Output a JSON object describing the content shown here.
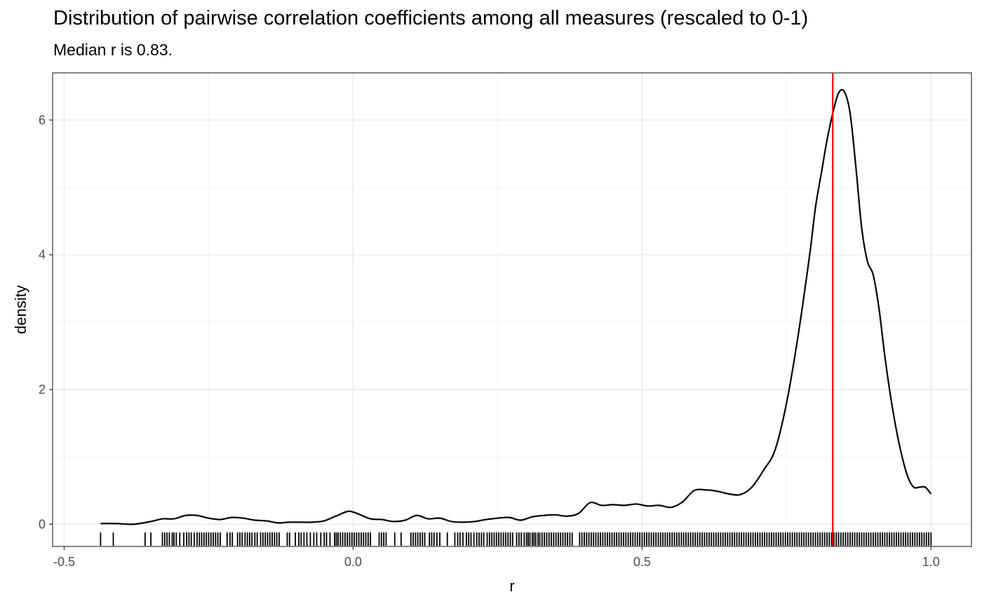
{
  "chart_data": {
    "type": "area",
    "title": "Distribution of pairwise correlation coefficients among all measures (rescaled to 0-1)",
    "subtitle": "Median r is 0.83.",
    "xlabel": "r",
    "ylabel": "density",
    "xlim": [
      -0.52,
      1.07
    ],
    "ylim": [
      -0.33,
      6.7
    ],
    "x_ticks": [
      -0.5,
      0.0,
      0.5,
      1.0
    ],
    "x_tick_labels": [
      "-0.5",
      "0.0",
      "0.5",
      "1.0"
    ],
    "y_ticks": [
      0,
      2,
      4,
      6
    ],
    "y_tick_labels": [
      "0",
      "2",
      "4",
      "6"
    ],
    "grid": true,
    "median": 0.83,
    "median_color": "#ff0000",
    "line_color": "#000000",
    "density_curve": {
      "x": [
        -0.437,
        -0.41,
        -0.38,
        -0.35,
        -0.33,
        -0.31,
        -0.29,
        -0.27,
        -0.25,
        -0.23,
        -0.21,
        -0.19,
        -0.17,
        -0.15,
        -0.13,
        -0.11,
        -0.09,
        -0.07,
        -0.05,
        -0.03,
        -0.01,
        0.0,
        0.01,
        0.03,
        0.05,
        0.07,
        0.09,
        0.11,
        0.13,
        0.15,
        0.17,
        0.19,
        0.21,
        0.23,
        0.25,
        0.27,
        0.29,
        0.31,
        0.33,
        0.35,
        0.37,
        0.39,
        0.41,
        0.43,
        0.45,
        0.47,
        0.49,
        0.51,
        0.53,
        0.55,
        0.57,
        0.59,
        0.61,
        0.63,
        0.65,
        0.67,
        0.69,
        0.71,
        0.73,
        0.75,
        0.77,
        0.79,
        0.8,
        0.81,
        0.82,
        0.83,
        0.84,
        0.85,
        0.86,
        0.87,
        0.88,
        0.89,
        0.9,
        0.91,
        0.92,
        0.93,
        0.94,
        0.95,
        0.96,
        0.97,
        0.98,
        0.99,
        1.0
      ],
      "y": [
        0.01,
        0.01,
        0.0,
        0.04,
        0.08,
        0.08,
        0.13,
        0.13,
        0.09,
        0.07,
        0.1,
        0.09,
        0.06,
        0.05,
        0.02,
        0.03,
        0.03,
        0.03,
        0.05,
        0.12,
        0.19,
        0.18,
        0.15,
        0.08,
        0.07,
        0.04,
        0.06,
        0.13,
        0.08,
        0.09,
        0.04,
        0.03,
        0.04,
        0.07,
        0.09,
        0.1,
        0.06,
        0.11,
        0.13,
        0.14,
        0.12,
        0.16,
        0.32,
        0.28,
        0.29,
        0.28,
        0.3,
        0.27,
        0.28,
        0.25,
        0.33,
        0.5,
        0.51,
        0.49,
        0.45,
        0.44,
        0.55,
        0.8,
        1.1,
        1.8,
        2.8,
        4.0,
        4.7,
        5.2,
        5.7,
        6.1,
        6.4,
        6.42,
        6.1,
        5.3,
        4.4,
        3.9,
        3.7,
        3.2,
        2.5,
        1.9,
        1.4,
        1.0,
        0.7,
        0.55,
        0.55,
        0.55,
        0.45
      ]
    },
    "rug": [
      -0.437,
      -0.415,
      -0.36,
      -0.35,
      -0.33,
      -0.326,
      -0.322,
      -0.318,
      -0.313,
      -0.31,
      -0.306,
      -0.3,
      -0.293,
      -0.288,
      -0.284,
      -0.28,
      -0.275,
      -0.27,
      -0.266,
      -0.262,
      -0.258,
      -0.254,
      -0.25,
      -0.246,
      -0.242,
      -0.238,
      -0.234,
      -0.23,
      -0.218,
      -0.213,
      -0.209,
      -0.2,
      -0.196,
      -0.192,
      -0.187,
      -0.183,
      -0.179,
      -0.175,
      -0.17,
      -0.166,
      -0.16,
      -0.156,
      -0.152,
      -0.148,
      -0.144,
      -0.14,
      -0.136,
      -0.132,
      -0.128,
      -0.114,
      -0.11,
      -0.1,
      -0.094,
      -0.09,
      -0.085,
      -0.08,
      -0.074,
      -0.068,
      -0.063,
      -0.056,
      -0.05,
      -0.046,
      -0.04,
      -0.032,
      -0.029,
      -0.026,
      -0.022,
      -0.018,
      -0.014,
      -0.01,
      -0.006,
      -0.002,
      0.002,
      0.006,
      0.01,
      0.014,
      0.018,
      0.022,
      0.026,
      0.03,
      0.045,
      0.049,
      0.053,
      0.057,
      0.072,
      0.083,
      0.1,
      0.104,
      0.108,
      0.112,
      0.116,
      0.12,
      0.124,
      0.132,
      0.136,
      0.14,
      0.145,
      0.15,
      0.163,
      0.176,
      0.181,
      0.185,
      0.19,
      0.196,
      0.2,
      0.204,
      0.209,
      0.214,
      0.218,
      0.222,
      0.226,
      0.232,
      0.236,
      0.24,
      0.244,
      0.248,
      0.252,
      0.256,
      0.26,
      0.264,
      0.268,
      0.272,
      0.276,
      0.283,
      0.287,
      0.291,
      0.296,
      0.3,
      0.303,
      0.306,
      0.31,
      0.313,
      0.316,
      0.32,
      0.323,
      0.327,
      0.331,
      0.335,
      0.339,
      0.343,
      0.347,
      0.351,
      0.355,
      0.359,
      0.363,
      0.367,
      0.371,
      0.375,
      0.379,
      0.392,
      0.396,
      0.4,
      0.404,
      0.408,
      0.412,
      0.416,
      0.42,
      0.424,
      0.428,
      0.432,
      0.436,
      0.44,
      0.444,
      0.448,
      0.452,
      0.456,
      0.46,
      0.464,
      0.468,
      0.472,
      0.476,
      0.48,
      0.484,
      0.488,
      0.492,
      0.496,
      0.5,
      0.504,
      0.508,
      0.512,
      0.516,
      0.52,
      0.524,
      0.528,
      0.532,
      0.536,
      0.54,
      0.544,
      0.548,
      0.552,
      0.556,
      0.56,
      0.564,
      0.568,
      0.572,
      0.576,
      0.58,
      0.584,
      0.588,
      0.592,
      0.596,
      0.6,
      0.604,
      0.608,
      0.612,
      0.616,
      0.62,
      0.624,
      0.628,
      0.632,
      0.636,
      0.64,
      0.644,
      0.648,
      0.652,
      0.656,
      0.66,
      0.664,
      0.668,
      0.672,
      0.676,
      0.68,
      0.684,
      0.688,
      0.692,
      0.696,
      0.7,
      0.704,
      0.708,
      0.712,
      0.716,
      0.72,
      0.724,
      0.728,
      0.732,
      0.736,
      0.74,
      0.744,
      0.748,
      0.752,
      0.756,
      0.76,
      0.764,
      0.768,
      0.772,
      0.776,
      0.78,
      0.784,
      0.788,
      0.792,
      0.796,
      0.8,
      0.804,
      0.808,
      0.812,
      0.816,
      0.82,
      0.824,
      0.828,
      0.832,
      0.836,
      0.84,
      0.844,
      0.848,
      0.852,
      0.856,
      0.86,
      0.864,
      0.868,
      0.872,
      0.876,
      0.88,
      0.884,
      0.888,
      0.892,
      0.896,
      0.9,
      0.904,
      0.908,
      0.912,
      0.916,
      0.92,
      0.924,
      0.928,
      0.932,
      0.936,
      0.94,
      0.944,
      0.948,
      0.952,
      0.956,
      0.96,
      0.964,
      0.968,
      0.972,
      0.976,
      0.98,
      0.984,
      0.988,
      0.992,
      0.996,
      1.0
    ]
  }
}
